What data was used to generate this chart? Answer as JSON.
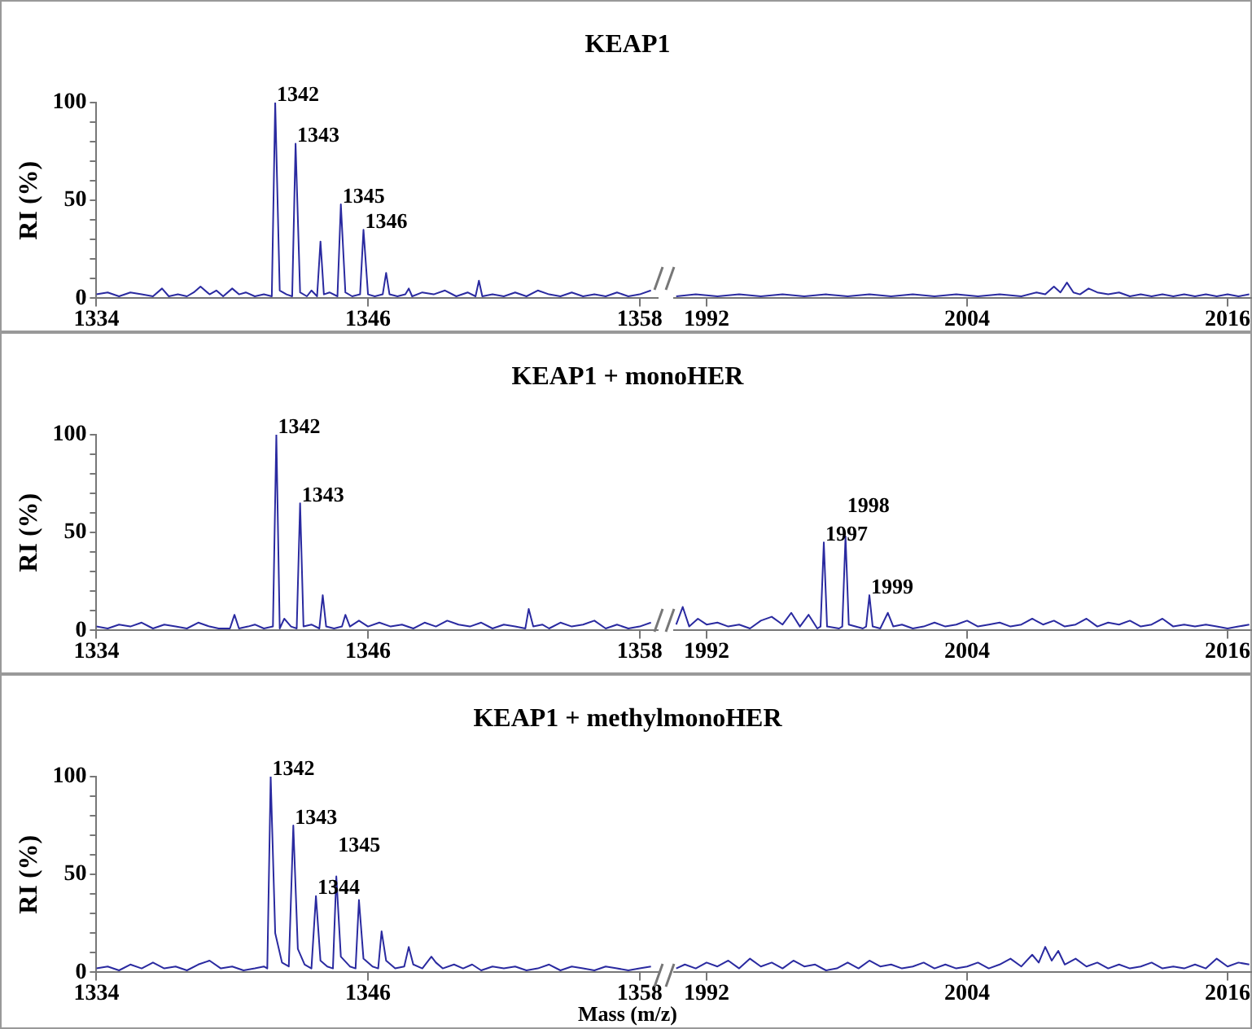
{
  "chart_data": [
    {
      "type": "line",
      "title": "KEAP1",
      "ylabel": "RI (%)",
      "marker": "none",
      "xlim": [
        1334,
        1358.8
      ],
      "xticks": [
        1334,
        1346,
        1358
      ],
      "ylim": [
        0,
        100
      ],
      "yticks": [
        0,
        {
          "value": 10,
          "label": null
        },
        {
          "value": 20,
          "label": null
        },
        {
          "value": 30,
          "label": null
        },
        {
          "value": 40,
          "label": null
        },
        50,
        {
          "value": 60,
          "label": null
        },
        {
          "value": 70,
          "label": null
        },
        {
          "value": 80,
          "label": null
        },
        {
          "value": 90,
          "label": null
        },
        100
      ],
      "series": [
        {
          "color": "#2a2aa0",
          "x": [
            1334,
            1334.5,
            1335,
            1335.5,
            1336,
            1336.5,
            1336.9,
            1337.2,
            1337.6,
            1338,
            1338.3,
            1338.6,
            1339,
            1339.3,
            1339.6,
            1340,
            1340.3,
            1340.6,
            1341,
            1341.4,
            1341.75,
            1341.9,
            1342.1,
            1342.4,
            1342.65,
            1342.8,
            1343,
            1343.3,
            1343.5,
            1343.75,
            1343.9,
            1344.05,
            1344.3,
            1344.65,
            1344.8,
            1345,
            1345.3,
            1345.65,
            1345.8,
            1346,
            1346.3,
            1346.65,
            1346.8,
            1346.95,
            1347.3,
            1347.65,
            1347.8,
            1347.95,
            1348.4,
            1348.9,
            1349.4,
            1349.9,
            1350.4,
            1350.75,
            1350.9,
            1351.05,
            1351.5,
            1352,
            1352.5,
            1353,
            1353.5,
            1354,
            1354.5,
            1355,
            1355.5,
            1356,
            1356.5,
            1357,
            1357.5,
            1358,
            1358.5
          ],
          "values": [
            2,
            3,
            1,
            3,
            2,
            1,
            5,
            1,
            2,
            1,
            3,
            6,
            2,
            4,
            1,
            5,
            2,
            3,
            1,
            2,
            1,
            100,
            4,
            2,
            1,
            79,
            3,
            1,
            4,
            1,
            29,
            2,
            3,
            1,
            48,
            3,
            1,
            2,
            35,
            2,
            1,
            2,
            13,
            2,
            1,
            2,
            5,
            1,
            3,
            2,
            4,
            1,
            3,
            1,
            9,
            1,
            2,
            1,
            3,
            1,
            4,
            2,
            1,
            3,
            1,
            2,
            1,
            3,
            1,
            2,
            4
          ]
        }
      ],
      "annotations": [
        {
          "text": "1342",
          "x": 1341.9,
          "y": 100
        },
        {
          "text": "1343",
          "x": 1342.8,
          "y": 79
        },
        {
          "text": "1345",
          "x": 1344.8,
          "y": 48
        },
        {
          "text": "1346",
          "x": 1345.8,
          "y": 35
        }
      ]
    },
    {
      "type": "line",
      "marker": "none",
      "tick_labels": "x",
      "xlim": [
        1990.5,
        2017.2
      ],
      "xticks": [
        1992,
        2004,
        2016
      ],
      "ylim": [
        0,
        100
      ],
      "series": [
        {
          "color": "#2a2aa0",
          "x": [
            1990.6,
            1991.5,
            1992.5,
            1993.5,
            1994.5,
            1995.5,
            1996.5,
            1997.5,
            1998.5,
            1999.5,
            2000.5,
            2001.5,
            2002.5,
            2003.5,
            2004.5,
            2005.5,
            2006.5,
            2007.2,
            2007.6,
            2008,
            2008.3,
            2008.6,
            2008.9,
            2009.2,
            2009.6,
            2010,
            2010.5,
            2011,
            2011.5,
            2012,
            2012.5,
            2013,
            2013.5,
            2014,
            2014.5,
            2015,
            2015.5,
            2016,
            2016.5,
            2017
          ],
          "values": [
            1,
            2,
            1,
            2,
            1,
            2,
            1,
            2,
            1,
            2,
            1,
            2,
            1,
            2,
            1,
            2,
            1,
            3,
            2,
            6,
            3,
            8,
            3,
            2,
            5,
            3,
            2,
            3,
            1,
            2,
            1,
            2,
            1,
            2,
            1,
            2,
            1,
            2,
            1,
            2
          ]
        }
      ]
    },
    {
      "type": "line",
      "title": "KEAP1 + monoHER",
      "ylabel": "RI (%)",
      "marker": "none",
      "xlim": [
        1334,
        1358.8
      ],
      "xticks": [
        1334,
        1346,
        1358
      ],
      "ylim": [
        0,
        100
      ],
      "yticks": [
        0,
        {
          "value": 10,
          "label": null
        },
        {
          "value": 20,
          "label": null
        },
        {
          "value": 30,
          "label": null
        },
        {
          "value": 40,
          "label": null
        },
        50,
        {
          "value": 60,
          "label": null
        },
        {
          "value": 70,
          "label": null
        },
        {
          "value": 80,
          "label": null
        },
        {
          "value": 90,
          "label": null
        },
        100
      ],
      "series": [
        {
          "color": "#2a2aa0",
          "x": [
            1334,
            1334.5,
            1335,
            1335.5,
            1336,
            1336.5,
            1337,
            1337.5,
            1338,
            1338.5,
            1339,
            1339.4,
            1339.9,
            1340.1,
            1340.3,
            1340.7,
            1341,
            1341.4,
            1341.8,
            1341.95,
            1342.1,
            1342.3,
            1342.6,
            1342.85,
            1343,
            1343.15,
            1343.5,
            1343.85,
            1344,
            1344.15,
            1344.5,
            1344.85,
            1345,
            1345.2,
            1345.6,
            1346,
            1346.5,
            1347,
            1347.5,
            1348,
            1348.5,
            1349,
            1349.5,
            1350,
            1350.5,
            1351,
            1351.5,
            1352,
            1352.5,
            1352.95,
            1353.1,
            1353.3,
            1353.7,
            1354,
            1354.5,
            1355,
            1355.5,
            1356,
            1356.5,
            1357,
            1357.5,
            1358,
            1358.5
          ],
          "values": [
            2,
            1,
            3,
            2,
            4,
            1,
            3,
            2,
            1,
            4,
            2,
            1,
            1,
            8,
            1,
            2,
            3,
            1,
            2,
            100,
            1,
            6,
            2,
            1,
            65,
            2,
            3,
            1,
            18,
            2,
            1,
            2,
            8,
            2,
            5,
            2,
            4,
            2,
            3,
            1,
            4,
            2,
            5,
            3,
            2,
            4,
            1,
            3,
            2,
            1,
            11,
            2,
            3,
            1,
            4,
            2,
            3,
            5,
            1,
            3,
            1,
            2,
            4
          ]
        }
      ],
      "annotations": [
        {
          "text": "1342",
          "x": 1341.95,
          "y": 100
        },
        {
          "text": "1343",
          "x": 1343,
          "y": 65
        }
      ]
    },
    {
      "type": "line",
      "marker": "none",
      "tick_labels": "x",
      "xlim": [
        1990.5,
        2017.2
      ],
      "xticks": [
        1992,
        2004,
        2016
      ],
      "ylim": [
        0,
        100
      ],
      "series": [
        {
          "color": "#2a2aa0",
          "x": [
            1990.6,
            1990.9,
            1991.2,
            1991.6,
            1992,
            1992.5,
            1993,
            1993.5,
            1994,
            1994.5,
            1995,
            1995.5,
            1995.9,
            1996.3,
            1996.7,
            1997.1,
            1997.25,
            1997.4,
            1997.55,
            1998.1,
            1998.25,
            1998.4,
            1998.55,
            1999.2,
            1999.35,
            1999.5,
            1999.65,
            2000,
            2000.35,
            2000.6,
            2001,
            2001.5,
            2002,
            2002.5,
            2003,
            2003.5,
            2004,
            2004.5,
            2005,
            2005.5,
            2006,
            2006.5,
            2007,
            2007.5,
            2008,
            2008.5,
            2009,
            2009.5,
            2010,
            2010.5,
            2011,
            2011.5,
            2012,
            2012.5,
            2013,
            2013.5,
            2014,
            2014.5,
            2015,
            2015.5,
            2016,
            2016.5,
            2017
          ],
          "values": [
            3,
            12,
            2,
            6,
            3,
            4,
            2,
            3,
            1,
            5,
            7,
            3,
            9,
            2,
            8,
            1,
            2,
            45,
            2,
            1,
            2,
            48,
            3,
            1,
            2,
            18,
            2,
            1,
            9,
            2,
            3,
            1,
            2,
            4,
            2,
            3,
            5,
            2,
            3,
            4,
            2,
            3,
            6,
            3,
            5,
            2,
            3,
            6,
            2,
            4,
            3,
            5,
            2,
            3,
            6,
            2,
            3,
            2,
            3,
            2,
            1,
            2,
            3
          ]
        }
      ],
      "annotations": [
        {
          "text": "1997",
          "x": 1997.4,
          "y": 45
        },
        {
          "text": "1998",
          "x": 1998.4,
          "y": 48
        },
        {
          "text": "1999",
          "x": 1999.5,
          "y": 18
        }
      ]
    },
    {
      "type": "line",
      "title": "KEAP1 + methylmonoHER",
      "ylabel": "RI (%)",
      "xlabel": "Mass (m/z)",
      "marker": "none",
      "xlim": [
        1334,
        1358.8
      ],
      "xticks": [
        1334,
        1346,
        1358
      ],
      "ylim": [
        0,
        100
      ],
      "yticks": [
        0,
        {
          "value": 10,
          "label": null
        },
        {
          "value": 20,
          "label": null
        },
        {
          "value": 30,
          "label": null
        },
        {
          "value": 40,
          "label": null
        },
        50,
        {
          "value": 60,
          "label": null
        },
        {
          "value": 70,
          "label": null
        },
        {
          "value": 80,
          "label": null
        },
        {
          "value": 90,
          "label": null
        },
        100
      ],
      "series": [
        {
          "color": "#2a2aa0",
          "x": [
            1334,
            1334.5,
            1335,
            1335.5,
            1336,
            1336.5,
            1337,
            1337.5,
            1338,
            1338.5,
            1339,
            1339.5,
            1340,
            1340.5,
            1341,
            1341.4,
            1341.55,
            1341.7,
            1341.9,
            1342.2,
            1342.5,
            1342.7,
            1342.9,
            1343.2,
            1343.5,
            1343.7,
            1343.9,
            1344.2,
            1344.45,
            1344.6,
            1344.8,
            1345.2,
            1345.45,
            1345.6,
            1345.8,
            1346.2,
            1346.45,
            1346.6,
            1346.8,
            1347.2,
            1347.6,
            1347.8,
            1348,
            1348.4,
            1348.8,
            1349,
            1349.3,
            1349.8,
            1350.2,
            1350.6,
            1351,
            1351.5,
            1352,
            1352.5,
            1353,
            1353.5,
            1354,
            1354.5,
            1355,
            1355.5,
            1356,
            1356.5,
            1357,
            1357.5,
            1358,
            1358.5
          ],
          "values": [
            2,
            3,
            1,
            4,
            2,
            5,
            2,
            3,
            1,
            4,
            6,
            2,
            3,
            1,
            2,
            3,
            2,
            100,
            20,
            5,
            3,
            75,
            12,
            4,
            2,
            39,
            6,
            3,
            2,
            49,
            8,
            3,
            2,
            37,
            7,
            3,
            2,
            21,
            6,
            2,
            3,
            13,
            4,
            2,
            8,
            5,
            2,
            4,
            2,
            4,
            1,
            3,
            2,
            3,
            1,
            2,
            4,
            1,
            3,
            2,
            1,
            3,
            2,
            1,
            2,
            3
          ]
        }
      ],
      "annotations": [
        {
          "text": "1342",
          "x": 1341.7,
          "y": 100
        },
        {
          "text": "1343",
          "x": 1342.7,
          "y": 75
        },
        {
          "text": "1344",
          "x": 1343.7,
          "y": 39
        },
        {
          "text": "1345",
          "x": 1344.6,
          "y": 49
        }
      ]
    },
    {
      "type": "line",
      "marker": "none",
      "tick_labels": "x",
      "xlim": [
        1990.5,
        2017.2
      ],
      "xticks": [
        1992,
        2004,
        2016
      ],
      "ylim": [
        0,
        100
      ],
      "series": [
        {
          "color": "#2a2aa0",
          "x": [
            1990.6,
            1991,
            1991.5,
            1992,
            1992.5,
            1993,
            1993.5,
            1994,
            1994.5,
            1995,
            1995.5,
            1996,
            1996.5,
            1997,
            1997.5,
            1998,
            1998.5,
            1999,
            1999.5,
            2000,
            2000.5,
            2001,
            2001.5,
            2002,
            2002.5,
            2003,
            2003.5,
            2004,
            2004.5,
            2005,
            2005.5,
            2006,
            2006.5,
            2007,
            2007.3,
            2007.6,
            2007.9,
            2008.2,
            2008.5,
            2009,
            2009.5,
            2010,
            2010.5,
            2011,
            2011.5,
            2012,
            2012.5,
            2013,
            2013.5,
            2014,
            2014.5,
            2015,
            2015.5,
            2016,
            2016.5,
            2017
          ],
          "values": [
            2,
            4,
            2,
            5,
            3,
            6,
            2,
            7,
            3,
            5,
            2,
            6,
            3,
            4,
            1,
            2,
            5,
            2,
            6,
            3,
            4,
            2,
            3,
            5,
            2,
            4,
            2,
            3,
            5,
            2,
            4,
            7,
            3,
            9,
            5,
            13,
            6,
            11,
            4,
            7,
            3,
            5,
            2,
            4,
            2,
            3,
            5,
            2,
            3,
            2,
            4,
            2,
            7,
            3,
            5,
            4
          ]
        }
      ]
    }
  ]
}
